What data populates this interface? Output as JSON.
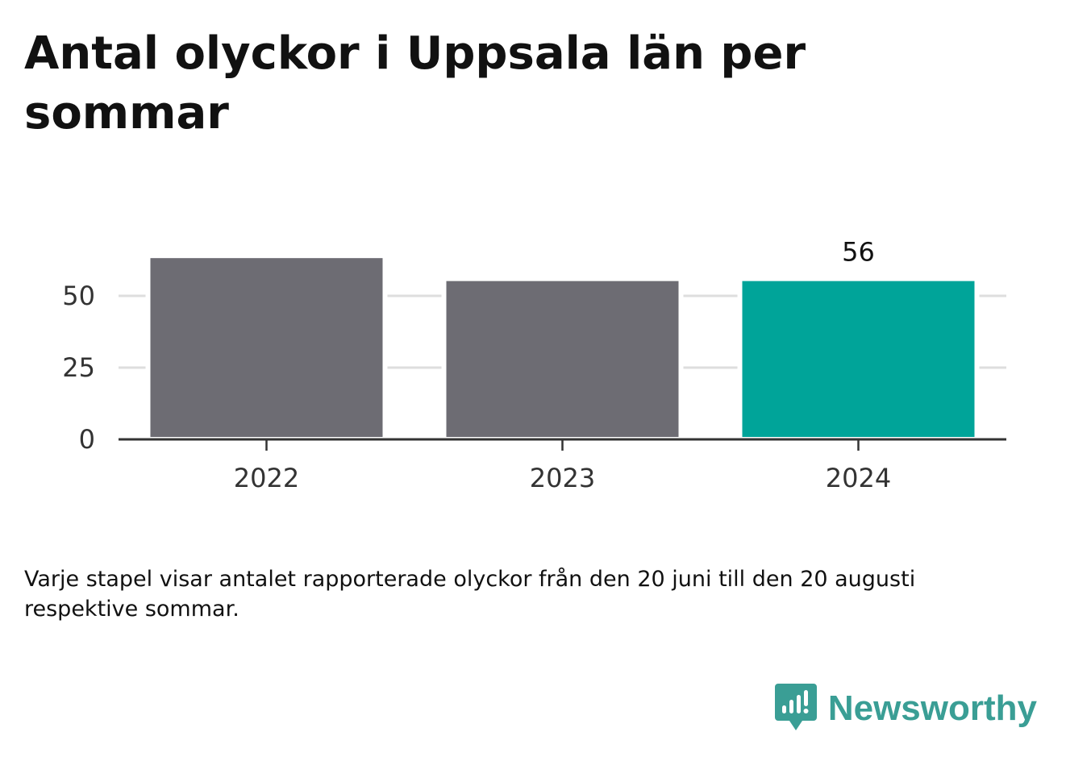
{
  "chart_data": {
    "type": "bar",
    "title": "Antal olyckor i Uppsala län per sommar",
    "categories": [
      "2022",
      "2023",
      "2024"
    ],
    "values": [
      64,
      56,
      56
    ],
    "data_labels": [
      "",
      "",
      "56"
    ],
    "y_ticks": [
      "0",
      "25",
      "50"
    ],
    "ylim": [
      0,
      70
    ],
    "xlabel": "",
    "ylabel": "",
    "grid": true,
    "colors": [
      "#6d6c73",
      "#6d6c73",
      "#00a499"
    ],
    "caption": "Varje stapel visar antalet rapporterade olyckor från den 20 juni till den 20 augusti respektive sommar."
  },
  "brand": {
    "name": "Newsworthy",
    "icon": "newsworthy-logo-icon",
    "color": "#3a9e95"
  }
}
